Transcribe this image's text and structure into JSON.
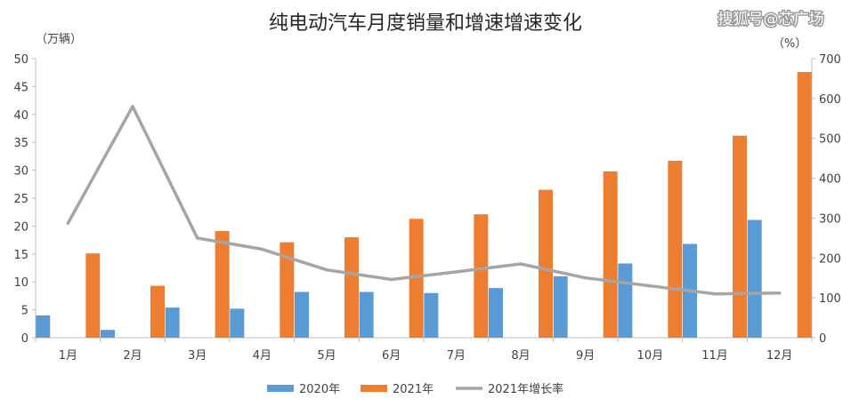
{
  "chart_data": {
    "type": "bar",
    "title": "纯电动汽车月度销量和增速增速变化",
    "ylabel": "（万辆）",
    "y2label": "（%）",
    "ylim": [
      0,
      50
    ],
    "y2lim": [
      0,
      700
    ],
    "yticks": [
      "0",
      "5",
      "10",
      "15",
      "20",
      "25",
      "30",
      "35",
      "40",
      "45",
      "50"
    ],
    "y2ticks": [
      "0",
      "100",
      "200",
      "300",
      "400",
      "500",
      "600",
      "700"
    ],
    "categories": [
      "1月",
      "2月",
      "3月",
      "4月",
      "5月",
      "6月",
      "7月",
      "8月",
      "9月",
      "10月",
      "11月",
      "12月"
    ],
    "series": [
      {
        "name": "2020年",
        "type": "bar",
        "axis": "left",
        "color": "#5b9bd5",
        "values": [
          4.0,
          1.4,
          5.4,
          5.2,
          8.2,
          8.2,
          8.0,
          8.9,
          11.0,
          13.3,
          16.8,
          21.1
        ]
      },
      {
        "name": "2021年",
        "type": "bar",
        "axis": "left",
        "color": "#ed7d31",
        "values": [
          15.1,
          9.3,
          19.1,
          17.1,
          18.0,
          21.3,
          22.1,
          26.5,
          29.8,
          31.7,
          36.2,
          47.6
        ]
      },
      {
        "name": "2021年增长率",
        "type": "line",
        "axis": "right",
        "color": "#a5a5a5",
        "values": [
          287,
          580,
          250,
          222,
          170,
          146,
          165,
          185,
          150,
          130,
          110,
          112
        ]
      }
    ],
    "legend_position": "bottom",
    "grid": false
  },
  "watermark": "搜狐号@芯广场"
}
